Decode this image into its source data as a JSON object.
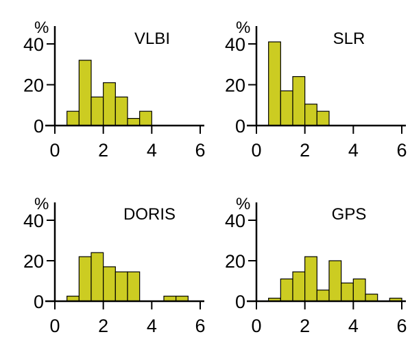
{
  "colors": {
    "bar_fill": "#cccc22",
    "bar_stroke": "#000000",
    "axis": "#000000"
  },
  "chart_data": [
    {
      "type": "bar",
      "title": "VLBI",
      "ylabel": "%",
      "xlabel": "",
      "xlim": [
        0,
        6
      ],
      "ylim": [
        0,
        45
      ],
      "xticks": [
        "0",
        "2",
        "4",
        "6"
      ],
      "yticks": [
        "0",
        "20",
        "40"
      ],
      "bin_width": 0.5,
      "bins": [
        {
          "x0": 0.5,
          "value": 7
        },
        {
          "x0": 1.0,
          "value": 32
        },
        {
          "x0": 1.5,
          "value": 14
        },
        {
          "x0": 2.0,
          "value": 21
        },
        {
          "x0": 2.5,
          "value": 14
        },
        {
          "x0": 3.0,
          "value": 3.5
        },
        {
          "x0": 3.5,
          "value": 7
        }
      ]
    },
    {
      "type": "bar",
      "title": "SLR",
      "ylabel": "%",
      "xlabel": "",
      "xlim": [
        0,
        6
      ],
      "ylim": [
        0,
        45
      ],
      "xticks": [
        "0",
        "2",
        "4",
        "6"
      ],
      "yticks": [
        "0",
        "20",
        "40"
      ],
      "bin_width": 0.5,
      "bins": [
        {
          "x0": 0.5,
          "value": 41
        },
        {
          "x0": 1.0,
          "value": 17
        },
        {
          "x0": 1.5,
          "value": 24
        },
        {
          "x0": 2.0,
          "value": 10.5
        },
        {
          "x0": 2.5,
          "value": 7
        }
      ]
    },
    {
      "type": "bar",
      "title": "DORIS",
      "ylabel": "%",
      "xlabel": "",
      "xlim": [
        0,
        6
      ],
      "ylim": [
        0,
        45
      ],
      "xticks": [
        "0",
        "2",
        "4",
        "6"
      ],
      "yticks": [
        "0",
        "20",
        "40"
      ],
      "bin_width": 0.5,
      "bins": [
        {
          "x0": 0.5,
          "value": 2.5
        },
        {
          "x0": 1.0,
          "value": 22
        },
        {
          "x0": 1.5,
          "value": 24
        },
        {
          "x0": 2.0,
          "value": 17
        },
        {
          "x0": 2.5,
          "value": 14.5
        },
        {
          "x0": 3.0,
          "value": 14.5
        },
        {
          "x0": 4.5,
          "value": 2.5
        },
        {
          "x0": 5.0,
          "value": 2.5
        }
      ]
    },
    {
      "type": "bar",
      "title": "GPS",
      "ylabel": "%",
      "xlabel": "",
      "xlim": [
        0,
        6
      ],
      "ylim": [
        0,
        45
      ],
      "xticks": [
        "0",
        "2",
        "4",
        "6"
      ],
      "yticks": [
        "0",
        "20",
        "40"
      ],
      "bin_width": 0.5,
      "bins": [
        {
          "x0": 0.5,
          "value": 1.5
        },
        {
          "x0": 1.0,
          "value": 11
        },
        {
          "x0": 1.5,
          "value": 14.5
        },
        {
          "x0": 2.0,
          "value": 22
        },
        {
          "x0": 2.5,
          "value": 5.5
        },
        {
          "x0": 3.0,
          "value": 20
        },
        {
          "x0": 3.5,
          "value": 9
        },
        {
          "x0": 4.0,
          "value": 11
        },
        {
          "x0": 4.5,
          "value": 3.5
        },
        {
          "x0": 5.5,
          "value": 1.5
        }
      ]
    }
  ]
}
